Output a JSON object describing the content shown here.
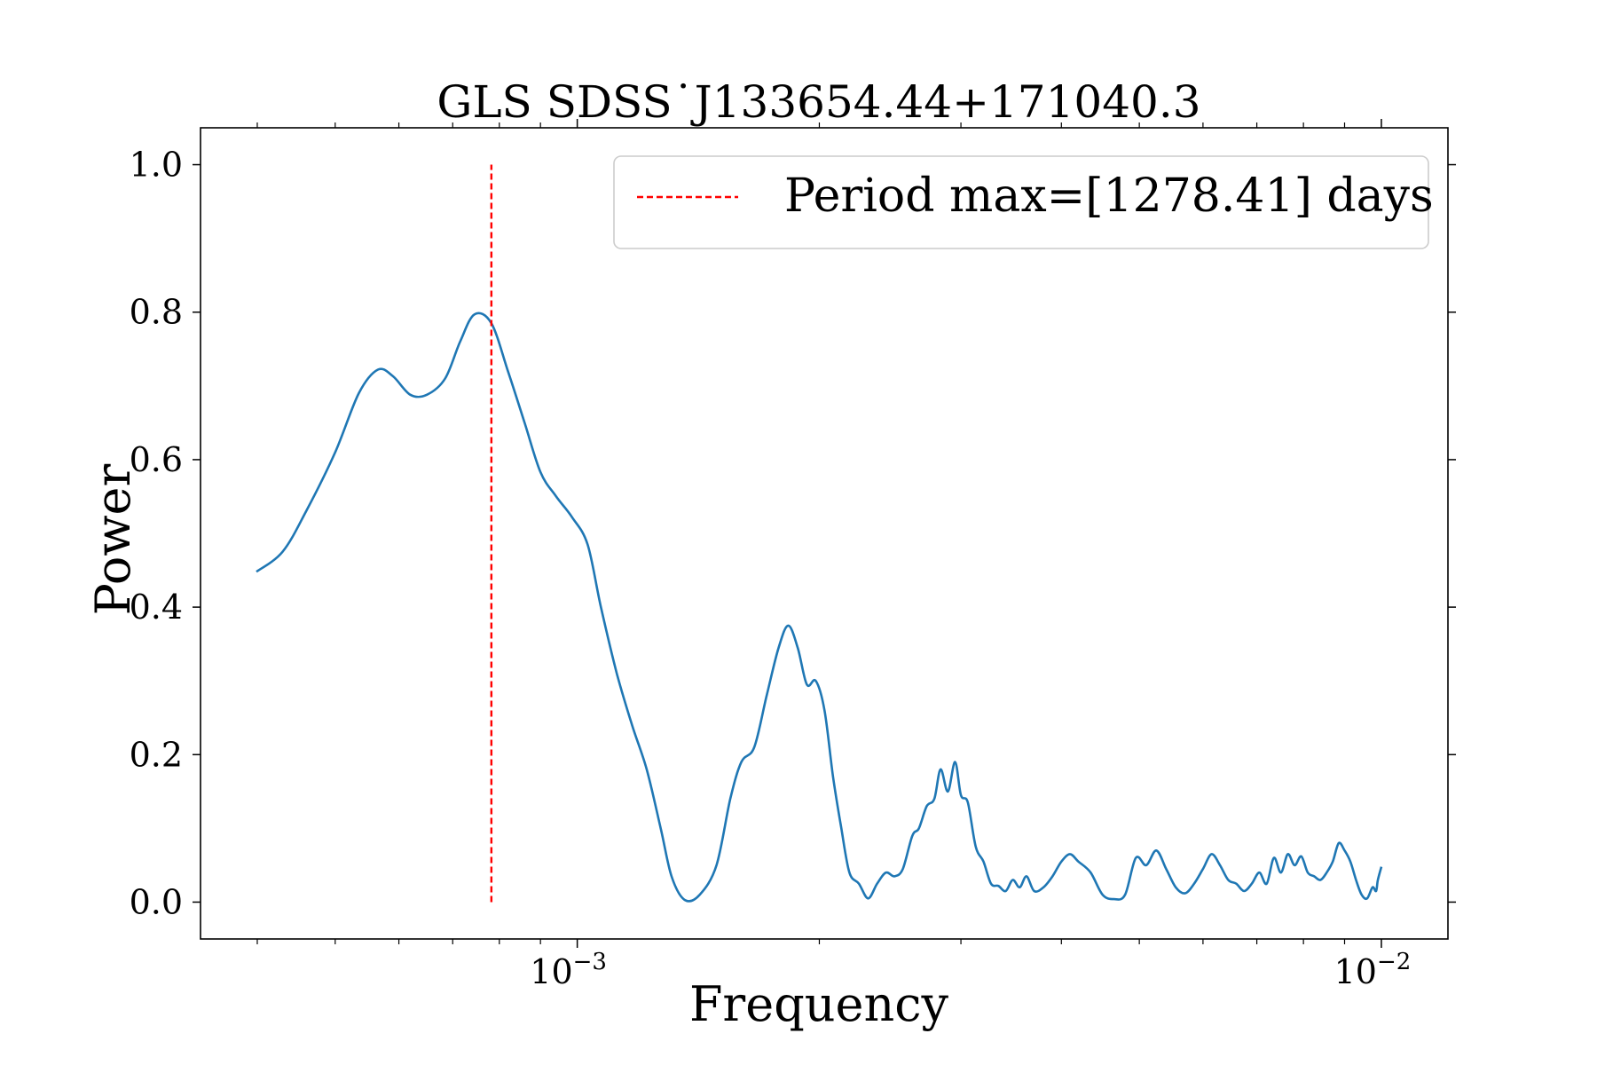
{
  "chart_data": {
    "type": "line",
    "title": "GLS SDSS˙J133654.44+171040.3",
    "xlabel": "Frequency",
    "ylabel": "Power",
    "xscale": "log",
    "xlim": [
      0.00034,
      0.0121
    ],
    "ylim": [
      -0.05,
      1.05
    ],
    "grid": false,
    "legend_position": "top-right",
    "x_ticks": [
      {
        "value": 0.001,
        "label_base": "10",
        "label_exp": "−3"
      },
      {
        "value": 0.01,
        "label_base": "10",
        "label_exp": "−2"
      }
    ],
    "x_minor_ticks": [
      0.0004,
      0.0005,
      0.0006,
      0.0007,
      0.0008,
      0.0009,
      0.002,
      0.003,
      0.004,
      0.005,
      0.006,
      0.007,
      0.008,
      0.009
    ],
    "y_ticks": [
      "0.0",
      "0.2",
      "0.4",
      "0.6",
      "0.8",
      "1.0"
    ],
    "y_tick_values": [
      0.0,
      0.2,
      0.4,
      0.6,
      0.8,
      1.0
    ],
    "series": [
      {
        "color": "#1f77b4",
        "x": [
          0.000399,
          0.00043,
          0.00046,
          0.0005,
          0.000535,
          0.000565,
          0.00059,
          0.00062,
          0.00065,
          0.000685,
          0.000715,
          0.000745,
          0.000782,
          0.00082,
          0.00086,
          0.0009,
          0.00094,
          0.000985,
          0.00103,
          0.00107,
          0.00112,
          0.00117,
          0.00122,
          0.00127,
          0.00131,
          0.00136,
          0.00142,
          0.00149,
          0.00155,
          0.0016,
          0.00166,
          0.00172,
          0.00178,
          0.00183,
          0.00188,
          0.00193,
          0.00198,
          0.00203,
          0.00208,
          0.00213,
          0.00218,
          0.00224,
          0.0023,
          0.00236,
          0.00242,
          0.00248,
          0.00254,
          0.00261,
          0.00266,
          0.00272,
          0.00278,
          0.00283,
          0.00289,
          0.00295,
          0.003,
          0.00306,
          0.00313,
          0.0032,
          0.00327,
          0.00334,
          0.00341,
          0.00348,
          0.00355,
          0.00362,
          0.0037,
          0.0038,
          0.0039,
          0.004,
          0.0041,
          0.0042,
          0.00435,
          0.0045,
          0.00465,
          0.0048,
          0.00495,
          0.0051,
          0.00525,
          0.0054,
          0.00555,
          0.0057,
          0.00585,
          0.006,
          0.00615,
          0.0063,
          0.00645,
          0.0066,
          0.00675,
          0.0069,
          0.00705,
          0.0072,
          0.00735,
          0.0075,
          0.00765,
          0.0078,
          0.00795,
          0.0081,
          0.00825,
          0.0084,
          0.00855,
          0.0087,
          0.00885,
          0.009,
          0.00915,
          0.0093,
          0.00945,
          0.0096,
          0.00975,
          0.00985,
          0.0099,
          0.01
        ],
        "y": [
          0.448,
          0.475,
          0.53,
          0.61,
          0.69,
          0.722,
          0.713,
          0.688,
          0.688,
          0.71,
          0.76,
          0.797,
          0.785,
          0.72,
          0.65,
          0.583,
          0.551,
          0.522,
          0.485,
          0.4,
          0.31,
          0.24,
          0.18,
          0.1,
          0.035,
          0.003,
          0.01,
          0.05,
          0.14,
          0.19,
          0.21,
          0.28,
          0.345,
          0.375,
          0.345,
          0.295,
          0.3,
          0.26,
          0.17,
          0.1,
          0.04,
          0.025,
          0.005,
          0.025,
          0.04,
          0.035,
          0.045,
          0.09,
          0.1,
          0.13,
          0.14,
          0.18,
          0.15,
          0.19,
          0.145,
          0.135,
          0.075,
          0.055,
          0.025,
          0.022,
          0.015,
          0.03,
          0.02,
          0.035,
          0.015,
          0.02,
          0.035,
          0.055,
          0.065,
          0.055,
          0.04,
          0.01,
          0.004,
          0.01,
          0.06,
          0.05,
          0.07,
          0.045,
          0.02,
          0.012,
          0.025,
          0.045,
          0.065,
          0.05,
          0.03,
          0.025,
          0.015,
          0.025,
          0.04,
          0.025,
          0.06,
          0.04,
          0.065,
          0.05,
          0.062,
          0.04,
          0.035,
          0.03,
          0.04,
          0.055,
          0.08,
          0.07,
          0.055,
          0.03,
          0.01,
          0.005,
          0.02,
          0.015,
          0.03,
          0.048
        ]
      },
      {
        "color": "#ff0000",
        "dashed": true,
        "legend": "Period max=[1278.41] days",
        "x": [
          0.000782,
          0.000782
        ],
        "y": [
          0.0,
          1.0
        ]
      }
    ]
  }
}
